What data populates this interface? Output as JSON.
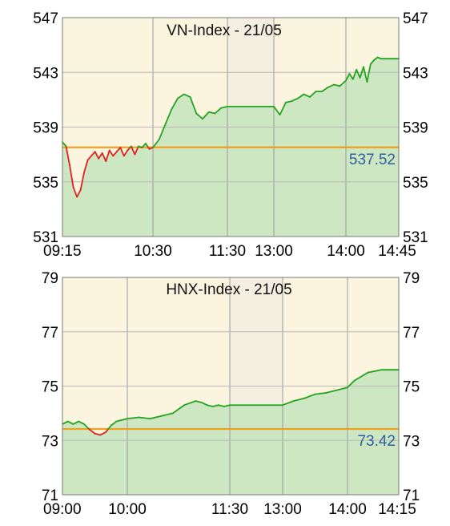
{
  "chart_data": [
    {
      "type": "line",
      "title": "VN-Index - 21/05",
      "ylim": [
        531,
        547
      ],
      "yticks": [
        "547",
        "543",
        "539",
        "535",
        "531"
      ],
      "xtick_labels": [
        "09:15",
        "10:30",
        "11:30",
        "13:00",
        "14:00",
        "14:45"
      ],
      "x_domain": [
        "09:15",
        "14:45"
      ],
      "gap": [
        "11:30",
        "13:00"
      ],
      "reference_value": 537.52,
      "reference_label": "537.52",
      "colors": {
        "above": "#22a322",
        "below": "#e02020",
        "reference": "#f0a020",
        "fill": "#cde7c2",
        "background": "#fbf4df",
        "gap_band": "#f4efe0"
      },
      "grid": true,
      "series": [
        {
          "x": [
            "09:15",
            "09:18",
            "09:21",
            "09:24",
            "09:27",
            "09:30",
            "09:33",
            "09:36",
            "09:39",
            "09:42",
            "09:45",
            "09:48",
            "09:51",
            "09:54",
            "09:57",
            "10:00",
            "10:03",
            "10:06",
            "10:09",
            "10:12",
            "10:15",
            "10:18",
            "10:21",
            "10:24",
            "10:27",
            "10:30",
            "10:35",
            "10:40",
            "10:45",
            "10:50",
            "10:55",
            "11:00",
            "11:05",
            "11:10",
            "11:15",
            "11:20",
            "11:25",
            "11:30",
            "13:00",
            "13:05",
            "13:10",
            "13:15",
            "13:20",
            "13:25",
            "13:30",
            "13:35",
            "13:40",
            "13:45",
            "13:50",
            "13:55",
            "14:00",
            "14:03",
            "14:06",
            "14:09",
            "14:12",
            "14:15",
            "14:18",
            "14:21",
            "14:24",
            "14:27",
            "14:30",
            "14:45"
          ],
          "values": [
            537.9,
            537.6,
            536.2,
            534.6,
            533.9,
            534.4,
            535.7,
            536.6,
            536.9,
            537.2,
            536.7,
            537.1,
            536.5,
            537.3,
            536.9,
            537.2,
            537.5,
            536.9,
            537.3,
            537.6,
            537.0,
            537.6,
            537.5,
            537.8,
            537.4,
            537.5,
            538.1,
            539.2,
            540.3,
            541.1,
            541.4,
            541.2,
            540.0,
            539.6,
            540.1,
            540.0,
            540.4,
            540.5,
            540.5,
            539.9,
            540.8,
            540.9,
            541.1,
            541.4,
            541.2,
            541.6,
            541.6,
            541.9,
            542.1,
            542.0,
            542.4,
            542.9,
            542.5,
            543.2,
            542.6,
            543.4,
            542.3,
            543.6,
            543.9,
            544.1,
            544.0,
            544.0
          ]
        }
      ]
    },
    {
      "type": "line",
      "title": "HNX-Index - 21/05",
      "ylim": [
        71,
        79
      ],
      "yticks": [
        "79",
        "77",
        "75",
        "73",
        "71"
      ],
      "xtick_labels": [
        "09:00",
        "10:00",
        "11:30",
        "13:00",
        "14:00",
        "14:15"
      ],
      "x_domain": [
        "09:00",
        "14:15"
      ],
      "gap": [
        "11:30",
        "13:00"
      ],
      "reference_value": 73.42,
      "reference_label": "73.42",
      "colors": {
        "above": "#22a322",
        "below": "#e02020",
        "reference": "#f0a020",
        "fill": "#cde7c2",
        "background": "#fbf4df",
        "gap_band": "#f4efe0"
      },
      "grid": true,
      "series": [
        {
          "x": [
            "09:00",
            "09:05",
            "09:10",
            "09:15",
            "09:20",
            "09:25",
            "09:30",
            "09:35",
            "09:40",
            "09:45",
            "09:50",
            "09:55",
            "10:00",
            "10:10",
            "10:20",
            "10:30",
            "10:40",
            "10:50",
            "11:00",
            "11:05",
            "11:10",
            "11:15",
            "11:20",
            "11:25",
            "11:30",
            "13:00",
            "13:10",
            "13:20",
            "13:30",
            "13:40",
            "13:50",
            "14:00",
            "14:02",
            "14:04",
            "14:06",
            "14:08",
            "14:10",
            "14:12",
            "14:15"
          ],
          "values": [
            73.6,
            73.7,
            73.6,
            73.7,
            73.6,
            73.4,
            73.25,
            73.2,
            73.3,
            73.55,
            73.7,
            73.75,
            73.8,
            73.85,
            73.8,
            73.9,
            74.0,
            74.3,
            74.45,
            74.4,
            74.3,
            74.25,
            74.3,
            74.25,
            74.3,
            74.3,
            74.45,
            74.55,
            74.7,
            74.75,
            74.85,
            74.95,
            75.2,
            75.35,
            75.5,
            75.55,
            75.6,
            75.6,
            75.6
          ]
        }
      ]
    }
  ]
}
